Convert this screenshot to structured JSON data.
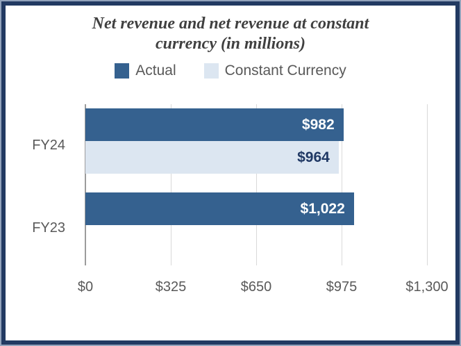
{
  "title": {
    "text": "Net revenue and net revenue at constant currency (in millions)",
    "line1": "Net revenue and net revenue at constant",
    "line2": "currency (in millions)"
  },
  "legend": {
    "items": [
      {
        "label": "Actual",
        "color": "#35618F"
      },
      {
        "label": "Constant Currency",
        "color": "#DCE6F1"
      }
    ]
  },
  "chart_data": {
    "type": "bar",
    "orientation": "horizontal",
    "title": "Net revenue and net revenue at constant currency (in millions)",
    "categories": [
      "FY24",
      "FY23"
    ],
    "series": [
      {
        "name": "Actual",
        "color": "#35618F",
        "label_color": "#FFFFFF",
        "values": [
          982,
          1022
        ],
        "data_labels": [
          "$982",
          "$1,022"
        ]
      },
      {
        "name": "Constant Currency",
        "color": "#DCE6F1",
        "label_color": "#1F3864",
        "values": [
          964,
          null
        ],
        "data_labels": [
          "$964",
          null
        ]
      }
    ],
    "x_axis": {
      "min": 0,
      "max": 1300,
      "tick_values": [
        0,
        325,
        650,
        975,
        1300
      ],
      "tick_labels": [
        "$0",
        "$325",
        "$650",
        "$975",
        "$1,300"
      ]
    },
    "grid": true,
    "legend_position": "top"
  },
  "colors": {
    "bar_actual": "#35618F",
    "bar_constant_currency": "#DCE6F1",
    "data_label_on_light": "#1F3864",
    "data_label_on_dark": "#FFFFFF",
    "axis_text": "#595959",
    "title_text": "#404040",
    "gridline": "#D9D9D9",
    "axis_line": "#9C9C9C",
    "frame_border": "#223A62",
    "frame_border_outer": "#92A3BB",
    "background": "#FFFFFF"
  }
}
